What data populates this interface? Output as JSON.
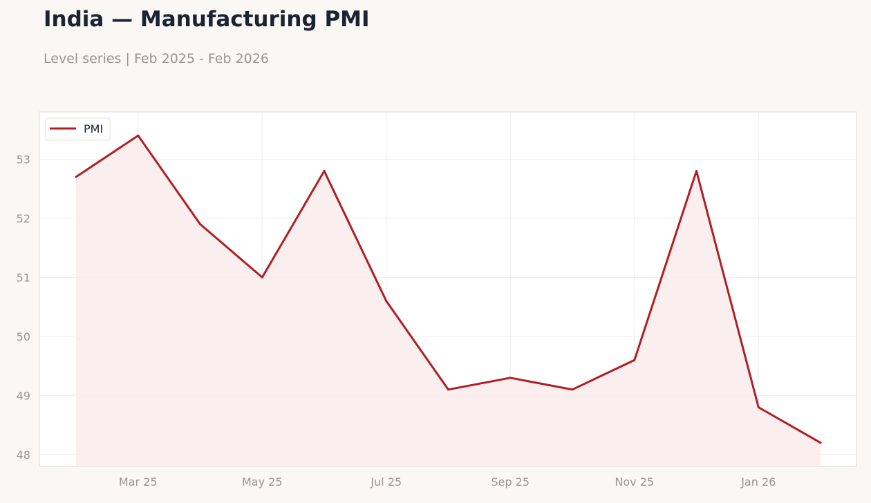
{
  "chart_data": {
    "type": "area",
    "title": "India — Manufacturing PMI",
    "subtitle": "Level series | Feb 2025 - Feb 2026",
    "xlabel": "",
    "ylabel": "",
    "x": [
      "2025-02",
      "2025-03",
      "2025-04",
      "2025-05",
      "2025-06",
      "2025-07",
      "2025-08",
      "2025-09",
      "2025-10",
      "2025-11",
      "2025-12",
      "2026-01",
      "2026-02"
    ],
    "x_ticks": [
      "Mar 25",
      "May 25",
      "Jul 25",
      "Sep 25",
      "Nov 25",
      "Jan 26"
    ],
    "y_ticks": [
      48,
      49,
      50,
      51,
      52,
      53
    ],
    "ylim": [
      47.8,
      53.8
    ],
    "grid": true,
    "legend_position": "top-left",
    "series": [
      {
        "name": "PMI",
        "color": "#b01e23",
        "fill": "#f9ecec",
        "values": [
          52.7,
          53.4,
          51.9,
          51.0,
          52.8,
          50.6,
          49.1,
          49.3,
          49.1,
          49.6,
          52.8,
          48.8,
          48.2
        ]
      }
    ]
  }
}
